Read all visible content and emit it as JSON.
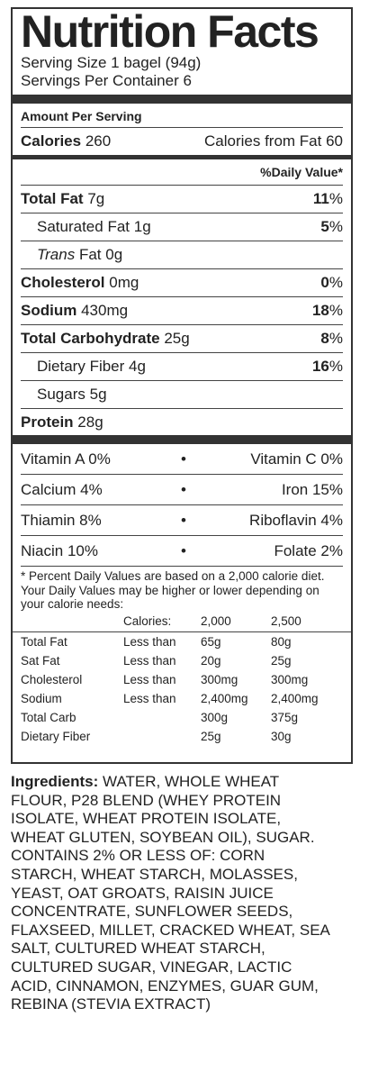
{
  "label": {
    "title": "Nutrition Facts",
    "serving_size": "Serving Size 1 bagel (94g)",
    "servings_per_container": "Servings Per Container 6",
    "amount_per_serving": "Amount Per Serving",
    "calories_label": "Calories",
    "calories_value": "260",
    "calories_from_fat": "Calories from Fat 60",
    "daily_value_header": "%Daily Value*",
    "nutrients": [
      {
        "name": "Total Fat",
        "amount": "7g",
        "dv": "11",
        "bold": true,
        "indent": false
      },
      {
        "name": "Saturated Fat",
        "amount": "1g",
        "dv": "5",
        "bold": false,
        "indent": true
      },
      {
        "name": "Trans",
        "name_suffix": "Fat",
        "amount": "0g",
        "dv": "",
        "bold": false,
        "indent": true
      },
      {
        "name": "Cholesterol",
        "amount": "0mg",
        "dv": "0",
        "bold": true,
        "indent": false
      },
      {
        "name": "Sodium",
        "amount": "430mg",
        "dv": "18",
        "bold": true,
        "indent": false
      },
      {
        "name": "Total Carbohydrate",
        "amount": "25g",
        "dv": "8",
        "bold": true,
        "indent": false
      },
      {
        "name": "Dietary Fiber",
        "amount": "4g",
        "dv": "16",
        "bold": false,
        "indent": true
      },
      {
        "name": "Sugars",
        "amount": "5g",
        "dv": "",
        "bold": false,
        "indent": true
      },
      {
        "name": "Protein",
        "amount": "28g",
        "dv": "",
        "bold": true,
        "indent": false
      }
    ],
    "percent_sign": "%",
    "vitamins": [
      {
        "left": "Vitamin A 0%",
        "right": "Vitamin C 0%"
      },
      {
        "left": "Calcium 4%",
        "right": "Iron 15%"
      },
      {
        "left": "Thiamin 8%",
        "right": "Riboflavin 4%"
      },
      {
        "left": "Niacin 10%",
        "right": "Folate 2%"
      }
    ],
    "bullet": "•",
    "footnote": "* Percent Daily Values are based on a 2,000 calorie diet. Your Daily Values may be higher or lower depending on your calorie needs:",
    "dv_table": {
      "header": [
        "",
        "Calories:",
        "2,000",
        "2,500"
      ],
      "rows": [
        [
          "Total Fat",
          "Less than",
          "65g",
          "80g"
        ],
        [
          "Sat Fat",
          "Less than",
          "20g",
          "25g"
        ],
        [
          "Cholesterol",
          "Less than",
          "300mg",
          "300mg"
        ],
        [
          "Sodium",
          "Less than",
          "2,400mg",
          "2,400mg"
        ],
        [
          "Total Carb",
          "",
          "300g",
          "375g"
        ],
        [
          "Dietary Fiber",
          "",
          "25g",
          "30g"
        ]
      ]
    }
  },
  "ingredients": {
    "label": "Ingredients:",
    "text": "WATER, WHOLE WHEAT FLOUR, P28 BLEND (WHEY PROTEIN ISOLATE, WHEAT PROTEIN ISOLATE, WHEAT GLUTEN, SOYBEAN OIL), SUGAR. CONTAINS 2% OR LESS OF: CORN STARCH, WHEAT STARCH, MOLASSES, YEAST, OAT GROATS, RAISIN JUICE CONCENTRATE, SUNFLOWER SEEDS, FLAXSEED, MILLET, CRACKED WHEAT, SEA SALT, CULTURED WHEAT STARCH, CULTURED SUGAR, VINEGAR, LACTIC ACID, CINNAMON, ENZYMES, GUAR GUM, REBINA (STEVIA EXTRACT)"
  }
}
